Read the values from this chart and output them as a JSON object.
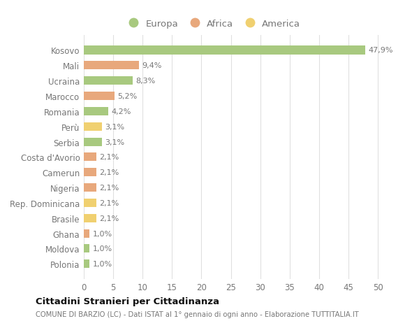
{
  "categories": [
    "Kosovo",
    "Mali",
    "Ucraina",
    "Marocco",
    "Romania",
    "Perù",
    "Serbia",
    "Costa d'Avorio",
    "Camerun",
    "Nigeria",
    "Rep. Dominicana",
    "Brasile",
    "Ghana",
    "Moldova",
    "Polonia"
  ],
  "values": [
    47.9,
    9.4,
    8.3,
    5.2,
    4.2,
    3.1,
    3.1,
    2.1,
    2.1,
    2.1,
    2.1,
    2.1,
    1.0,
    1.0,
    1.0
  ],
  "labels": [
    "47,9%",
    "9,4%",
    "8,3%",
    "5,2%",
    "4,2%",
    "3,1%",
    "3,1%",
    "2,1%",
    "2,1%",
    "2,1%",
    "2,1%",
    "2,1%",
    "1,0%",
    "1,0%",
    "1,0%"
  ],
  "continents": [
    "Europa",
    "Africa",
    "Europa",
    "Africa",
    "Europa",
    "America",
    "Europa",
    "Africa",
    "Africa",
    "Africa",
    "America",
    "America",
    "Africa",
    "Europa",
    "Europa"
  ],
  "continent_colors": {
    "Europa": "#a8c97f",
    "Africa": "#e8a87c",
    "America": "#f0d070"
  },
  "background_color": "#ffffff",
  "grid_color": "#e0e0e0",
  "title": "Cittadini Stranieri per Cittadinanza",
  "subtitle": "COMUNE DI BARZIO (LC) - Dati ISTAT al 1° gennaio di ogni anno - Elaborazione TUTTITALIA.IT",
  "xlim": [
    0,
    52
  ],
  "xticks": [
    0,
    5,
    10,
    15,
    20,
    25,
    30,
    35,
    40,
    45,
    50
  ],
  "label_color": "#777777",
  "title_color": "#111111",
  "subtitle_color": "#777777"
}
